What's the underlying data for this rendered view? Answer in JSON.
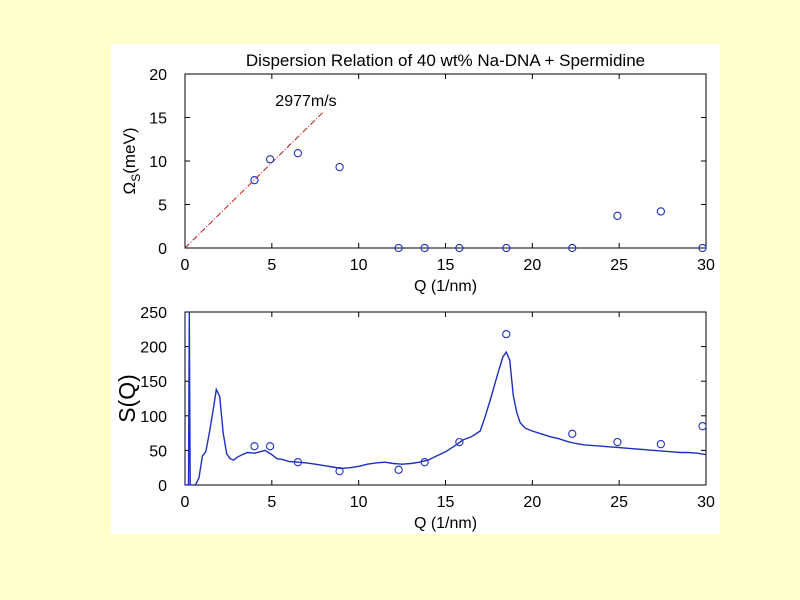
{
  "colors": {
    "background": "#ffffcc",
    "panel": "#ffffff",
    "data": "#1f2fbf",
    "fit_line": "#c01818"
  },
  "chart_data": [
    {
      "type": "scatter",
      "title": "Dispersion Relation of 40 wt% Na-DNA  + Spermidine",
      "xlabel": "Q (1/nm)",
      "ylabel": {
        "symbol": "Ω",
        "subscript": "S",
        "rest": "(meV)"
      },
      "xlim": [
        0,
        30
      ],
      "ylim": [
        0,
        20
      ],
      "xticks": [
        "0",
        "5",
        "10",
        "15",
        "20",
        "25",
        "30"
      ],
      "yticks": [
        "0",
        "5",
        "10",
        "15",
        "20"
      ],
      "grid": false,
      "annotation": "2977m/s",
      "fit_line": {
        "x": [
          0,
          8
        ],
        "y": [
          0,
          15.7
        ]
      },
      "series": [
        {
          "x": [
            4.0,
            4.9,
            6.5,
            8.9,
            12.3,
            13.8,
            15.8,
            18.5,
            22.3,
            24.9,
            27.4,
            29.8
          ],
          "y": [
            7.8,
            10.2,
            10.9,
            9.3,
            0,
            0,
            0,
            0,
            0,
            3.7,
            4.2,
            0
          ]
        }
      ]
    },
    {
      "type": "line",
      "xlabel": "Q (1/nm)",
      "ylabel": "S(Q)",
      "xlim": [
        0,
        30
      ],
      "ylim": [
        0,
        250
      ],
      "xticks": [
        "0",
        "5",
        "10",
        "15",
        "20",
        "25",
        "30"
      ],
      "yticks": [
        "0",
        "50",
        "100",
        "150",
        "200",
        "250"
      ],
      "grid": false,
      "line": {
        "x": [
          0.0,
          0.2,
          0.25,
          0.3,
          0.5,
          0.6,
          0.8,
          1.0,
          1.2,
          1.4,
          1.6,
          1.8,
          2.0,
          2.2,
          2.4,
          2.6,
          2.8,
          3.0,
          3.3,
          3.6,
          4.0,
          4.3,
          4.6,
          5.0,
          5.3,
          5.6,
          6.0,
          6.5,
          7.0,
          7.5,
          8.0,
          8.5,
          9.0,
          9.5,
          10.0,
          10.5,
          11.0,
          11.5,
          12.0,
          12.5,
          13.0,
          13.5,
          14.0,
          14.5,
          15.0,
          15.5,
          16.0,
          16.5,
          17.0,
          17.3,
          17.6,
          18.0,
          18.3,
          18.5,
          18.7,
          18.9,
          19.1,
          19.3,
          19.6,
          20.0,
          20.5,
          21.0,
          21.5,
          22.0,
          22.5,
          23.0,
          23.5,
          24.0,
          24.5,
          25.0,
          25.5,
          26.0,
          26.5,
          27.0,
          27.5,
          28.0,
          28.5,
          29.0,
          29.5,
          30.0
        ],
        "y": [
          0,
          0,
          250,
          0,
          0,
          0,
          10,
          42,
          48,
          75,
          105,
          138,
          128,
          75,
          45,
          38,
          36,
          40,
          44,
          47,
          46,
          48,
          50,
          44,
          38,
          37,
          34,
          33,
          32,
          30,
          28,
          26,
          24,
          25,
          27,
          30,
          32,
          33,
          31,
          30,
          31,
          33,
          36,
          42,
          48,
          56,
          65,
          70,
          78,
          100,
          125,
          160,
          185,
          192,
          180,
          130,
          105,
          90,
          82,
          78,
          74,
          70,
          67,
          63,
          60,
          58,
          57,
          56,
          55,
          54,
          53,
          52,
          51,
          50,
          49,
          48,
          47,
          47,
          46,
          44
        ]
      },
      "points": {
        "x": [
          4.0,
          4.9,
          6.5,
          8.9,
          12.3,
          13.8,
          15.8,
          18.5,
          22.3,
          24.9,
          27.4,
          29.8
        ],
        "y": [
          56,
          56,
          33,
          20,
          22,
          33,
          62,
          218,
          74,
          62,
          59,
          85
        ]
      }
    }
  ]
}
